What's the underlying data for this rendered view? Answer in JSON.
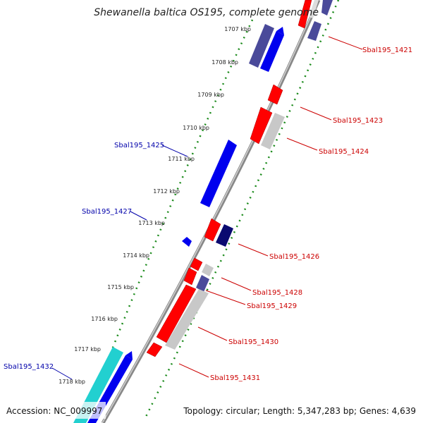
{
  "title": "Shewanella baltica OS195, complete genome",
  "accession": "Accession: NC_009997",
  "topology": "Topology: circular; Length: 5,347,283 bp; Genes: 4,639",
  "colors": {
    "forward": "#ff0000",
    "reverse": "#0000ee",
    "grey": "#c8c8c8",
    "slate": "#4a4a9a",
    "navy": "#0a0a70",
    "cyan": "#22d0d0",
    "label_red": "#cc0000",
    "label_blue": "#0000aa",
    "tick_green": "#1a8a1a"
  },
  "kbp_ticks": [
    "1707 kbp",
    "1708 kbp",
    "1709 kbp",
    "1710 kbp",
    "1711 kbp",
    "1712 kbp",
    "1713 kbp",
    "1714 kbp",
    "1715 kbp",
    "1716 kbp",
    "1717 kbp",
    "1718 kbp"
  ],
  "gene_labels": [
    {
      "text": "Sbal195_1421",
      "side": "right"
    },
    {
      "text": "Sbal195_1423",
      "side": "right"
    },
    {
      "text": "Sbal195_1424",
      "side": "right"
    },
    {
      "text": "Sbal195_1425",
      "side": "left"
    },
    {
      "text": "Sbal195_1427",
      "side": "left"
    },
    {
      "text": "Sbal195_1426",
      "side": "right"
    },
    {
      "text": "Sbal195_1428",
      "side": "right"
    },
    {
      "text": "Sbal195_1429",
      "side": "right"
    },
    {
      "text": "Sbal195_1430",
      "side": "right"
    },
    {
      "text": "Sbal195_1431",
      "side": "right"
    },
    {
      "text": "Sbal195_1432",
      "side": "left"
    }
  ]
}
